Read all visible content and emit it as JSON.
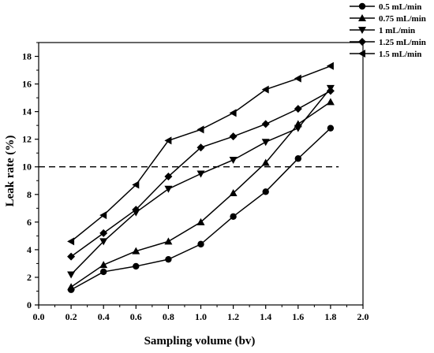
{
  "chart_data": {
    "type": "line",
    "xlabel": "Sampling volume (bv)",
    "ylabel": "Leak rate (%)",
    "xlim": [
      0.0,
      2.0
    ],
    "ylim": [
      0,
      19
    ],
    "x_ticks": [
      "0.0",
      "0.2",
      "0.4",
      "0.6",
      "0.8",
      "1.0",
      "1.2",
      "1.4",
      "1.6",
      "1.8",
      "2.0"
    ],
    "y_ticks": [
      "0",
      "2",
      "4",
      "6",
      "8",
      "10",
      "12",
      "14",
      "16",
      "18"
    ],
    "grid": false,
    "legend_position": "top-right, outside plot",
    "x": [
      0.2,
      0.4,
      0.6,
      0.8,
      1.0,
      1.2,
      1.4,
      1.6,
      1.8
    ],
    "series": [
      {
        "name": "0.5 mL/min",
        "marker": "circle",
        "values": [
          1.1,
          2.4,
          2.8,
          3.3,
          4.4,
          6.4,
          8.2,
          10.6,
          12.8
        ]
      },
      {
        "name": "0.75 mL/min",
        "marker": "triangle-up",
        "values": [
          1.3,
          2.9,
          3.9,
          4.6,
          6.0,
          8.1,
          10.3,
          13.1,
          14.7
        ]
      },
      {
        "name": "1 mL/min",
        "marker": "triangle-down",
        "values": [
          2.2,
          4.6,
          6.7,
          8.4,
          9.5,
          10.5,
          11.8,
          12.8,
          15.7
        ]
      },
      {
        "name": "1.25 mL/min",
        "marker": "diamond",
        "values": [
          3.5,
          5.2,
          6.9,
          9.3,
          11.4,
          12.2,
          13.1,
          14.2,
          15.5
        ]
      },
      {
        "name": "1.5 mL/min",
        "marker": "triangle-left",
        "values": [
          4.6,
          6.5,
          8.7,
          11.9,
          12.7,
          13.9,
          15.6,
          16.4,
          17.3
        ]
      }
    ],
    "reference_line": {
      "y": 10,
      "style": "dashed"
    },
    "colors": {
      "line": "#000000",
      "marker": "#000000",
      "background": "#ffffff"
    }
  }
}
